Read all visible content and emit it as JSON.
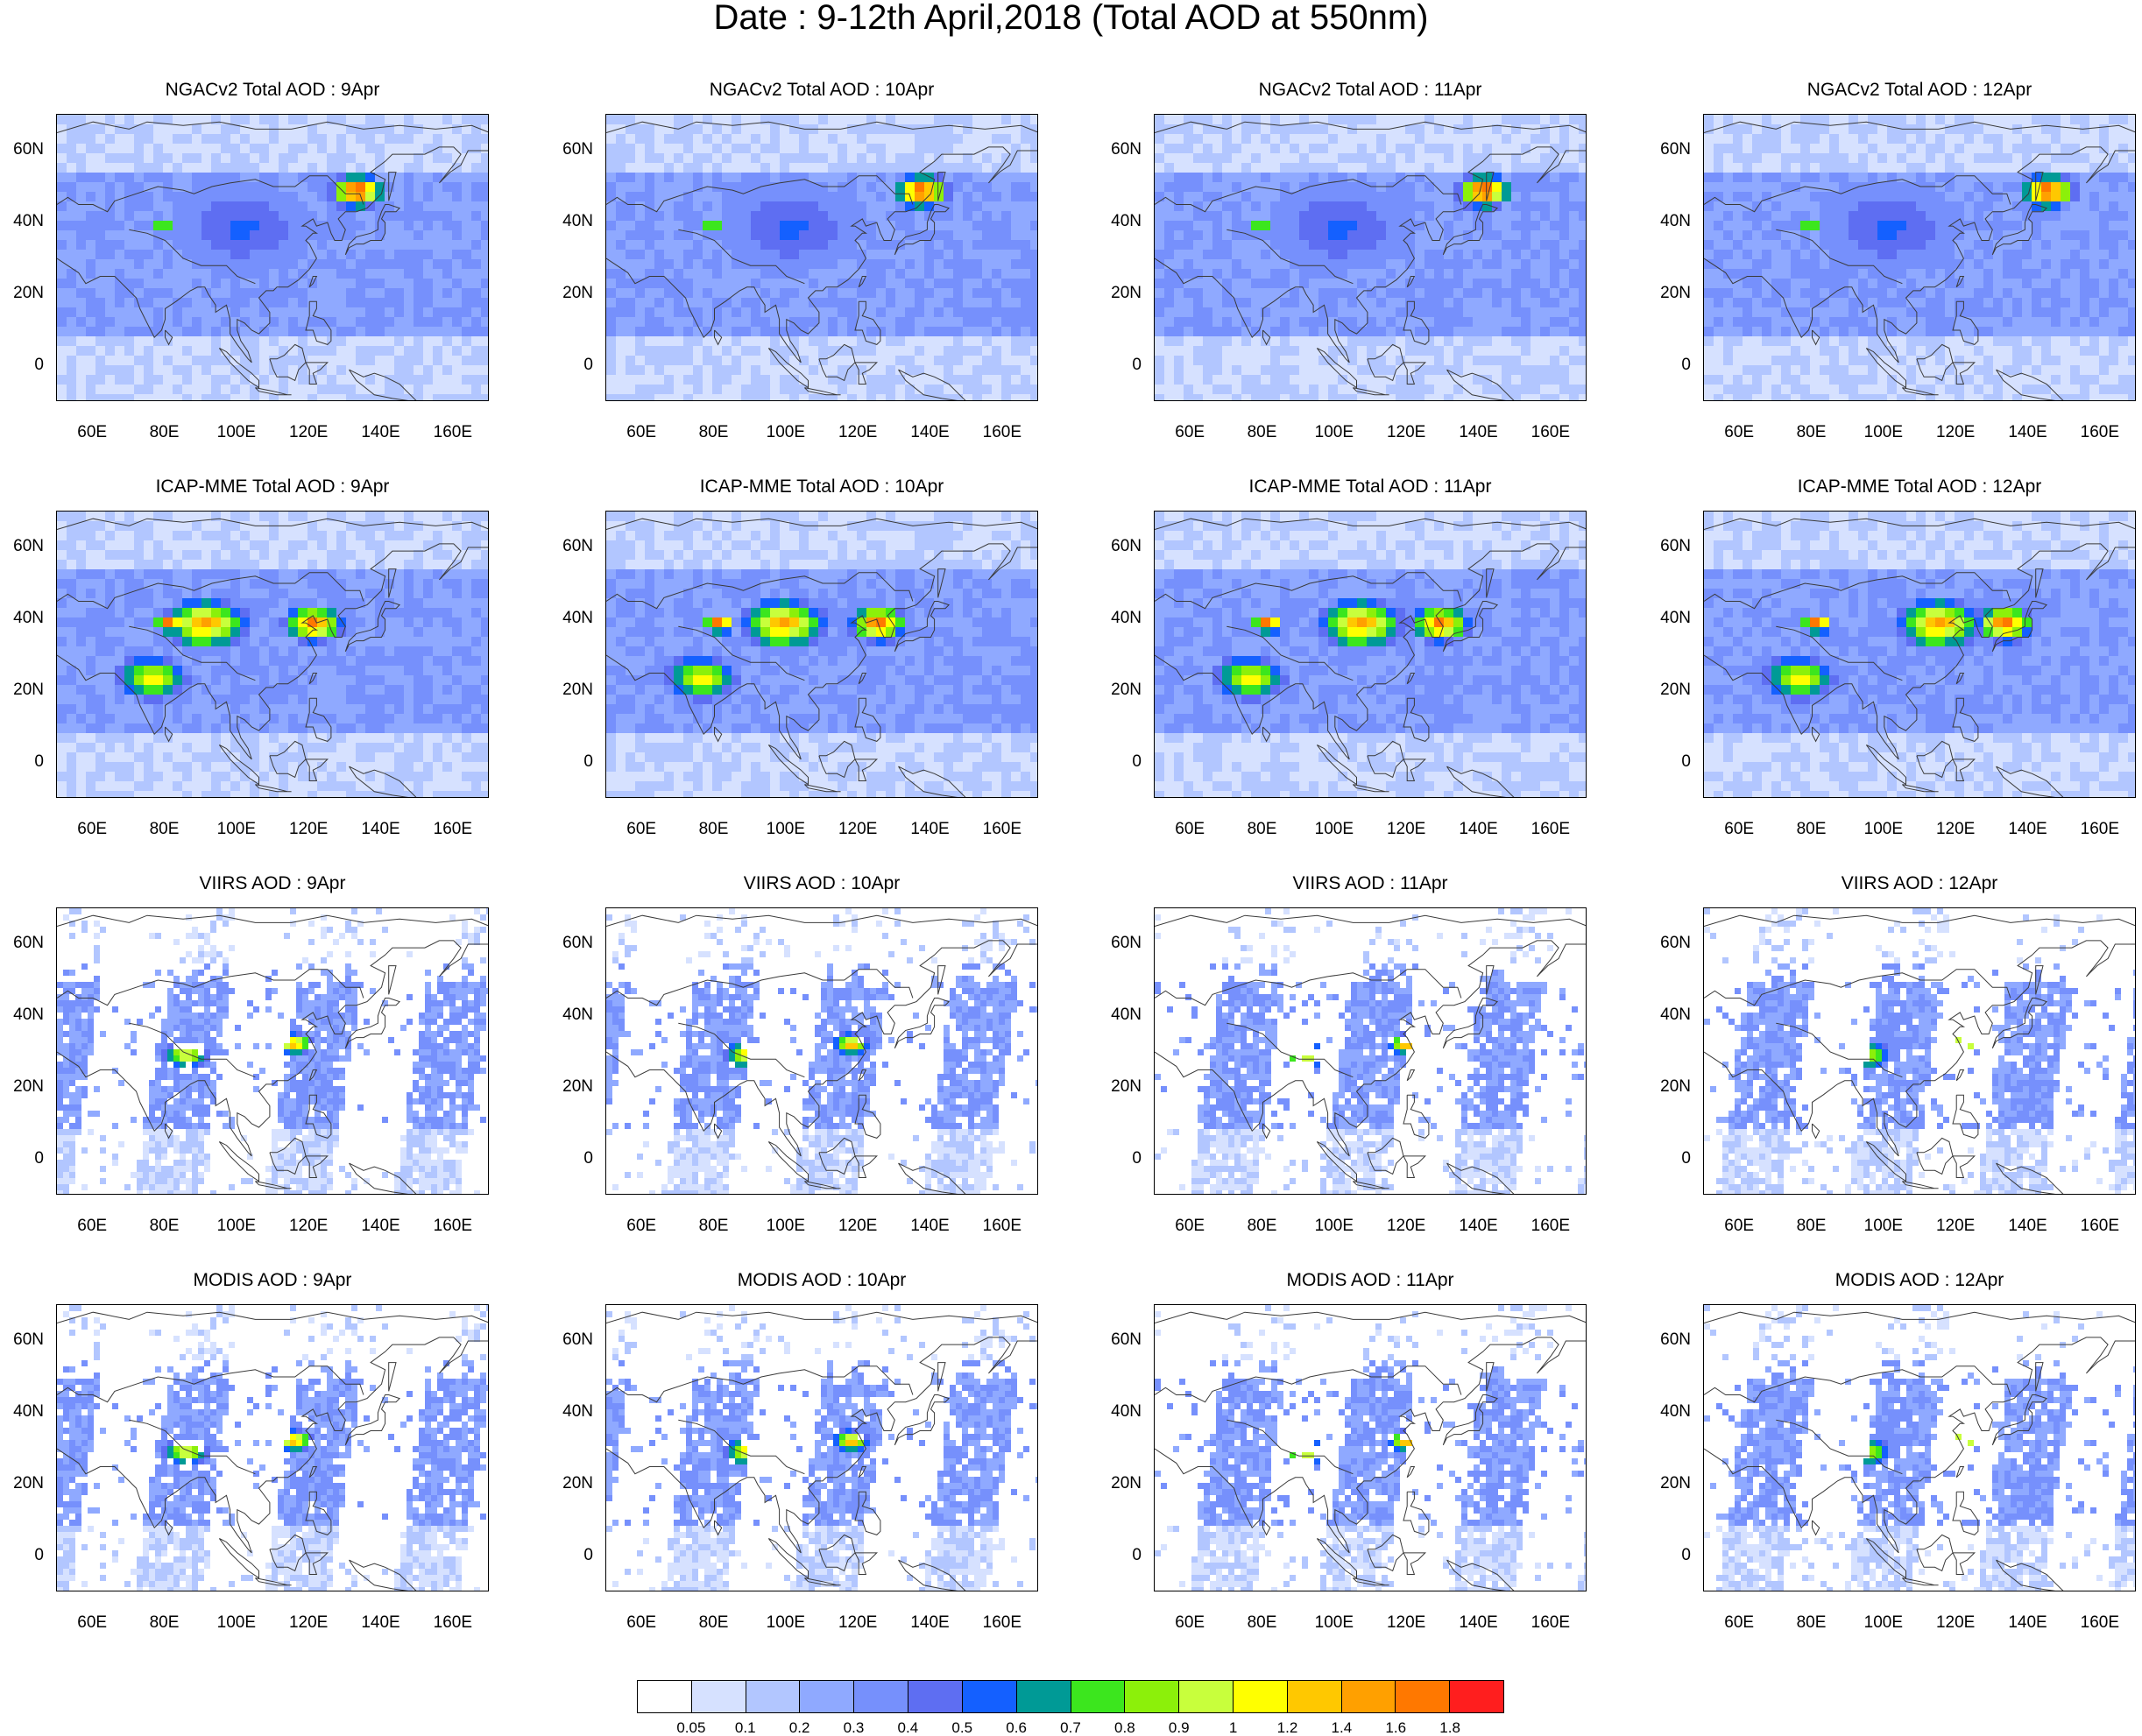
{
  "title": "Date : 9-12th April,2018 (Total AOD at 550nm)",
  "colors": {
    "scale": [
      "#ffffff",
      "#d6e1ff",
      "#b2c6ff",
      "#8fa9ff",
      "#7690fc",
      "#5e6ef2",
      "#1460ff",
      "#009a96",
      "#3ce61e",
      "#8cf00a",
      "#c8ff3c",
      "#ffff00",
      "#ffc800",
      "#ffa000",
      "#ff7800",
      "#ff1e1e"
    ],
    "coastline": "#3a3a3a",
    "frame": "#000000"
  },
  "colorbar": {
    "labels": [
      "0.05",
      "0.1",
      "0.2",
      "0.3",
      "0.4",
      "0.5",
      "0.6",
      "0.7",
      "0.8",
      "0.9",
      "1",
      "1.2",
      "1.4",
      "1.6",
      "1.8"
    ]
  },
  "axes": {
    "y_ticks": [
      "60N",
      "40N",
      "20N",
      "0"
    ],
    "x_ticks": [
      "60E",
      "80E",
      "100E",
      "120E",
      "140E",
      "160E"
    ]
  },
  "panels": [
    {
      "title": "NGACv2 Total AOD : 9Apr",
      "kind": "model-ngac",
      "day": 0
    },
    {
      "title": "NGACv2 Total AOD : 10Apr",
      "kind": "model-ngac",
      "day": 1
    },
    {
      "title": "NGACv2 Total AOD : 11Apr",
      "kind": "model-ngac",
      "day": 2
    },
    {
      "title": "NGACv2 Total AOD : 12Apr",
      "kind": "model-ngac",
      "day": 3
    },
    {
      "title": "ICAP-MME Total AOD : 9Apr",
      "kind": "model-icap",
      "day": 0
    },
    {
      "title": "ICAP-MME Total AOD : 10Apr",
      "kind": "model-icap",
      "day": 1
    },
    {
      "title": "ICAP-MME Total AOD : 11Apr",
      "kind": "model-icap",
      "day": 2
    },
    {
      "title": "ICAP-MME Total AOD : 12Apr",
      "kind": "model-icap",
      "day": 3
    },
    {
      "title": "VIIRS AOD : 9Apr",
      "kind": "sat-viirs",
      "day": 0
    },
    {
      "title": "VIIRS AOD : 10Apr",
      "kind": "sat-viirs",
      "day": 1
    },
    {
      "title": "VIIRS AOD : 11Apr",
      "kind": "sat-viirs",
      "day": 2
    },
    {
      "title": "VIIRS AOD : 12Apr",
      "kind": "sat-viirs",
      "day": 3
    },
    {
      "title": "MODIS AOD : 9Apr",
      "kind": "sat-modis",
      "day": 0
    },
    {
      "title": "MODIS AOD : 10Apr",
      "kind": "sat-modis",
      "day": 1
    },
    {
      "title": "MODIS AOD : 11Apr",
      "kind": "sat-modis",
      "day": 2
    },
    {
      "title": "MODIS AOD : 12Apr",
      "kind": "sat-modis",
      "day": 3
    }
  ],
  "map_extent": {
    "lon": [
      50,
      170
    ],
    "lat": [
      -10,
      70
    ]
  }
}
